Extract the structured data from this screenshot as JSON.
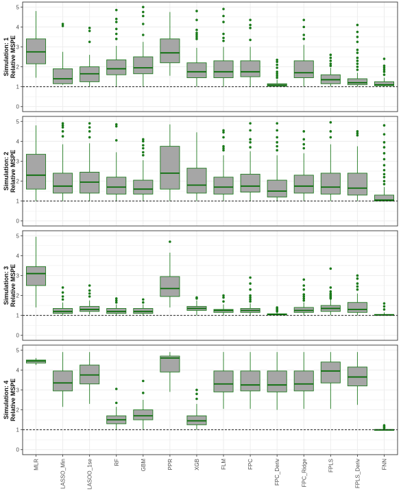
{
  "chart_data": {
    "type": "box",
    "categories": [
      "MLR",
      "LASSO_Min",
      "LASOO_1se",
      "RF",
      "GBM",
      "PPR",
      "XGB",
      "FLM",
      "FPC",
      "FPC_Deriv",
      "FPC_Ridge",
      "FPLS",
      "FPLS_Deriv",
      "FNN"
    ],
    "yticks": [
      0,
      1,
      2,
      3,
      4,
      5
    ],
    "ylim": [
      -0.25,
      5.25
    ],
    "reference_line": 1,
    "grid": true,
    "colors": {
      "box_fill": "#a6a6a6",
      "box_stroke": "#1e7a1e",
      "median": "#0a6e0a",
      "outlier": "#1a7a1a",
      "reference": "#222222",
      "grid": "#ebebeb",
      "panel_border": "#333333"
    },
    "panels": [
      {
        "label_line1": "Simulation: 1",
        "label_line2": "Relative MSPE",
        "boxes": [
          {
            "low": 1.45,
            "q1": 2.15,
            "median": 2.75,
            "q3": 3.4,
            "high": 4.8,
            "outliers": []
          },
          {
            "low": 1.1,
            "q1": 1.15,
            "median": 1.4,
            "q3": 1.9,
            "high": 2.75,
            "outliers": [
              4.05,
              4.15
            ]
          },
          {
            "low": 1.0,
            "q1": 1.25,
            "median": 1.65,
            "q3": 2.0,
            "high": 2.6,
            "outliers": [
              3.25,
              3.8,
              3.95
            ]
          },
          {
            "low": 1.0,
            "q1": 1.6,
            "median": 1.9,
            "q3": 2.35,
            "high": 3.05,
            "outliers": [
              3.4,
              3.65,
              3.9,
              4.25,
              4.4,
              4.85
            ]
          },
          {
            "low": 1.0,
            "q1": 1.65,
            "median": 1.95,
            "q3": 2.5,
            "high": 3.25,
            "outliers": [
              3.6,
              4.15,
              4.55,
              4.75,
              5.0
            ]
          },
          {
            "low": 1.55,
            "q1": 2.2,
            "median": 2.7,
            "q3": 3.4,
            "high": 4.75,
            "outliers": []
          },
          {
            "low": 1.0,
            "q1": 1.45,
            "median": 1.75,
            "q3": 2.2,
            "high": 2.95,
            "outliers": [
              3.4,
              3.5,
              3.6,
              3.7,
              3.85,
              4.35,
              4.8
            ]
          },
          {
            "low": 1.0,
            "q1": 1.45,
            "median": 1.75,
            "q3": 2.3,
            "high": 3.0,
            "outliers": [
              3.3,
              3.45,
              3.65,
              4.25,
              4.55,
              4.9
            ]
          },
          {
            "low": 1.0,
            "q1": 1.5,
            "median": 1.75,
            "q3": 2.3,
            "high": 3.0,
            "outliers": [
              3.35,
              3.95,
              4.1,
              4.35
            ]
          },
          {
            "low": 1.0,
            "q1": 1.02,
            "median": 1.08,
            "q3": 1.15,
            "high": 1.35,
            "outliers": [
              1.45,
              1.55,
              1.65,
              1.75,
              1.95,
              2.1,
              2.25,
              2.35
            ]
          },
          {
            "low": 1.0,
            "q1": 1.45,
            "median": 1.7,
            "q3": 2.3,
            "high": 3.1,
            "outliers": [
              3.4,
              3.6,
              4.0,
              4.35
            ]
          },
          {
            "low": 1.0,
            "q1": 1.15,
            "median": 1.35,
            "q3": 1.6,
            "high": 1.95,
            "outliers": [
              2.05,
              2.15,
              2.3,
              2.45,
              2.6
            ]
          },
          {
            "low": 1.0,
            "q1": 1.1,
            "median": 1.2,
            "q3": 1.4,
            "high": 1.7,
            "outliers": [
              1.85,
              2.0,
              2.15,
              2.3,
              2.45,
              2.7,
              2.85,
              3.25,
              3.5,
              3.75,
              4.1
            ]
          },
          {
            "low": 1.0,
            "q1": 1.05,
            "median": 1.1,
            "q3": 1.25,
            "high": 1.45,
            "outliers": [
              1.6,
              1.75,
              1.85,
              1.95,
              2.05,
              2.4
            ]
          }
        ]
      },
      {
        "label_line1": "Simulation: 2",
        "label_line2": "Relative MSPE",
        "boxes": [
          {
            "low": 1.0,
            "q1": 1.6,
            "median": 2.3,
            "q3": 3.35,
            "high": 4.8,
            "outliers": []
          },
          {
            "low": 1.0,
            "q1": 1.4,
            "median": 1.75,
            "q3": 2.4,
            "high": 3.85,
            "outliers": [
              4.25,
              4.5,
              4.7,
              4.8,
              4.9
            ]
          },
          {
            "low": 1.0,
            "q1": 1.4,
            "median": 1.95,
            "q3": 2.45,
            "high": 3.9,
            "outliers": [
              4.2,
              4.5,
              4.7,
              4.9
            ]
          },
          {
            "low": 1.0,
            "q1": 1.35,
            "median": 1.7,
            "q3": 2.2,
            "high": 3.45,
            "outliers": [
              4.05,
              4.75,
              4.85
            ]
          },
          {
            "low": 1.0,
            "q1": 1.35,
            "median": 1.6,
            "q3": 2.05,
            "high": 3.05,
            "outliers": [
              3.3,
              3.45,
              3.65,
              3.8,
              4.0,
              4.1
            ]
          },
          {
            "low": 1.0,
            "q1": 1.6,
            "median": 2.4,
            "q3": 3.75,
            "high": 4.85,
            "outliers": []
          },
          {
            "low": 1.0,
            "q1": 1.4,
            "median": 1.8,
            "q3": 2.65,
            "high": 4.45,
            "outliers": []
          },
          {
            "low": 1.0,
            "q1": 1.35,
            "median": 1.7,
            "q3": 2.2,
            "high": 3.3,
            "outliers": [
              3.55,
              3.65,
              3.75,
              4.2,
              4.45,
              4.55
            ]
          },
          {
            "low": 1.0,
            "q1": 1.45,
            "median": 1.75,
            "q3": 2.35,
            "high": 3.5,
            "outliers": [
              3.7,
              3.95,
              4.1,
              4.55,
              4.9
            ]
          },
          {
            "low": 1.0,
            "q1": 1.2,
            "median": 1.5,
            "q3": 2.05,
            "high": 3.3,
            "outliers": [
              3.55,
              3.75,
              3.95,
              4.2,
              4.55,
              4.9
            ]
          },
          {
            "low": 1.0,
            "q1": 1.4,
            "median": 1.75,
            "q3": 2.3,
            "high": 3.4,
            "outliers": [
              3.65,
              3.85,
              4.1,
              4.5
            ]
          },
          {
            "low": 1.0,
            "q1": 1.35,
            "median": 1.7,
            "q3": 2.4,
            "high": 3.85,
            "outliers": [
              4.2,
              4.5,
              4.95
            ]
          },
          {
            "low": 1.0,
            "q1": 1.3,
            "median": 1.65,
            "q3": 2.4,
            "high": 3.75,
            "outliers": [
              4.3,
              4.4,
              4.5
            ]
          },
          {
            "low": 1.0,
            "q1": 1.0,
            "median": 1.05,
            "q3": 1.3,
            "high": 1.7,
            "outliers": [
              1.85,
              2.0,
              2.2,
              2.35,
              2.55,
              2.8,
              3.1,
              3.4,
              3.7,
              3.95,
              4.35,
              4.8
            ]
          }
        ]
      },
      {
        "label_line1": "Simulation: 3",
        "label_line2": "Relative MSPE",
        "boxes": [
          {
            "low": 1.4,
            "q1": 2.5,
            "median": 3.1,
            "q3": 3.45,
            "high": 4.95,
            "outliers": []
          },
          {
            "low": 1.0,
            "q1": 1.1,
            "median": 1.2,
            "q3": 1.35,
            "high": 1.65,
            "outliers": [
              1.8,
              1.95,
              2.15,
              2.4
            ]
          },
          {
            "low": 1.05,
            "q1": 1.2,
            "median": 1.3,
            "q3": 1.45,
            "high": 1.75,
            "outliers": [
              1.95,
              2.1,
              2.25,
              2.5
            ]
          },
          {
            "low": 1.0,
            "q1": 1.1,
            "median": 1.2,
            "q3": 1.35,
            "high": 1.55,
            "outliers": [
              1.65,
              1.75,
              1.85
            ]
          },
          {
            "low": 1.0,
            "q1": 1.1,
            "median": 1.2,
            "q3": 1.35,
            "high": 1.55,
            "outliers": [
              1.65,
              1.8
            ]
          },
          {
            "low": 1.4,
            "q1": 1.95,
            "median": 2.35,
            "q3": 2.95,
            "high": 4.15,
            "outliers": [
              4.7
            ]
          },
          {
            "low": 1.0,
            "q1": 1.25,
            "median": 1.35,
            "q3": 1.45,
            "high": 1.75,
            "outliers": [
              1.85,
              1.9
            ]
          },
          {
            "low": 1.0,
            "q1": 1.15,
            "median": 1.25,
            "q3": 1.3,
            "high": 1.55,
            "outliers": [
              1.7,
              1.9,
              2.0
            ]
          },
          {
            "low": 1.0,
            "q1": 1.15,
            "median": 1.25,
            "q3": 1.35,
            "high": 1.6,
            "outliers": [
              1.7,
              1.8,
              1.9,
              2.0,
              2.3,
              2.6,
              2.9
            ]
          },
          {
            "low": 1.0,
            "q1": 1.02,
            "median": 1.05,
            "q3": 1.08,
            "high": 1.15,
            "outliers": [
              1.2,
              1.25,
              1.3,
              1.35,
              1.4
            ]
          },
          {
            "low": 1.0,
            "q1": 1.15,
            "median": 1.25,
            "q3": 1.4,
            "high": 1.65,
            "outliers": [
              1.75,
              1.85,
              1.95,
              2.05,
              2.3,
              2.5,
              2.8
            ]
          },
          {
            "low": 1.0,
            "q1": 1.2,
            "median": 1.35,
            "q3": 1.5,
            "high": 1.8,
            "outliers": [
              1.85,
              1.9,
              1.95,
              2.0,
              2.05,
              2.1,
              2.2,
              2.4,
              3.35
            ]
          },
          {
            "low": 1.0,
            "q1": 1.15,
            "median": 1.3,
            "q3": 1.65,
            "high": 2.1,
            "outliers": [
              2.3,
              2.45,
              2.6,
              2.85,
              3.0
            ]
          },
          {
            "low": 1.0,
            "q1": 1.0,
            "median": 1.02,
            "q3": 1.05,
            "high": 1.15,
            "outliers": [
              1.3,
              1.45,
              1.6
            ]
          }
        ]
      },
      {
        "label_line1": "Simulation: 4",
        "label_line2": "Relative MSPE",
        "boxes": [
          {
            "low": 4.25,
            "q1": 4.35,
            "median": 4.45,
            "q3": 4.5,
            "high": 4.6,
            "outliers": []
          },
          {
            "low": 2.15,
            "q1": 2.95,
            "median": 3.35,
            "q3": 3.95,
            "high": 4.9,
            "outliers": []
          },
          {
            "low": 2.3,
            "q1": 3.3,
            "median": 3.75,
            "q3": 4.25,
            "high": 4.9,
            "outliers": []
          },
          {
            "low": 1.0,
            "q1": 1.3,
            "median": 1.5,
            "q3": 1.7,
            "high": 2.15,
            "outliers": [
              2.35,
              3.05
            ]
          },
          {
            "low": 1.0,
            "q1": 1.5,
            "median": 1.7,
            "q3": 2.0,
            "high": 2.5,
            "outliers": [
              2.85,
              3.45
            ]
          },
          {
            "low": 2.9,
            "q1": 3.9,
            "median": 4.6,
            "q3": 4.7,
            "high": 4.9,
            "outliers": []
          },
          {
            "low": 1.0,
            "q1": 1.25,
            "median": 1.45,
            "q3": 1.7,
            "high": 2.3,
            "outliers": [
              2.55,
              2.8,
              3.0
            ]
          },
          {
            "low": 2.05,
            "q1": 2.9,
            "median": 3.3,
            "q3": 3.95,
            "high": 4.9,
            "outliers": []
          },
          {
            "low": 2.05,
            "q1": 2.95,
            "median": 3.25,
            "q3": 3.95,
            "high": 4.9,
            "outliers": []
          },
          {
            "low": 2.0,
            "q1": 2.9,
            "median": 3.25,
            "q3": 3.95,
            "high": 4.9,
            "outliers": []
          },
          {
            "low": 2.05,
            "q1": 2.95,
            "median": 3.3,
            "q3": 3.95,
            "high": 4.9,
            "outliers": []
          },
          {
            "low": 2.05,
            "q1": 3.35,
            "median": 3.95,
            "q3": 4.4,
            "high": 4.9,
            "outliers": []
          },
          {
            "low": 2.25,
            "q1": 3.2,
            "median": 3.65,
            "q3": 4.15,
            "high": 4.9,
            "outliers": []
          },
          {
            "low": 1.0,
            "q1": 1.0,
            "median": 1.0,
            "q3": 1.01,
            "high": 1.03,
            "outliers": [
              1.08,
              1.12,
              1.17,
              1.22
            ]
          }
        ]
      }
    ]
  }
}
